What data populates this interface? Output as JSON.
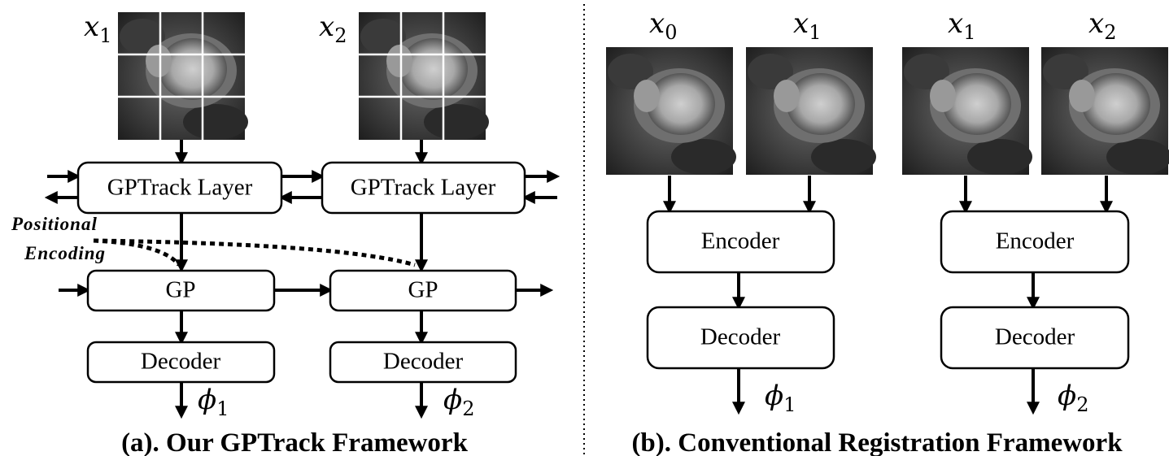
{
  "panel_a": {
    "caption": "(a). Our GPTrack Framework",
    "inputs": [
      {
        "symbol": "x",
        "sub": "1"
      },
      {
        "symbol": "x",
        "sub": "2"
      }
    ],
    "layer_label": "GPTrack Layer",
    "positional_encoding": [
      "Positional",
      "Encoding"
    ],
    "gp_label": "GP",
    "decoder_label": "Decoder",
    "outputs": [
      {
        "symbol": "ϕ",
        "sub": "1"
      },
      {
        "symbol": "ϕ",
        "sub": "2"
      }
    ]
  },
  "panel_b": {
    "caption": "(b). Conventional Registration Framework",
    "inputs": [
      {
        "symbol": "x",
        "sub": "0"
      },
      {
        "symbol": "x",
        "sub": "1"
      },
      {
        "symbol": "x",
        "sub": "1"
      },
      {
        "symbol": "x",
        "sub": "2"
      }
    ],
    "encoder_label": "Encoder",
    "decoder_label": "Decoder",
    "outputs": [
      {
        "symbol": "ϕ",
        "sub": "1"
      },
      {
        "symbol": "ϕ",
        "sub": "2"
      }
    ]
  }
}
